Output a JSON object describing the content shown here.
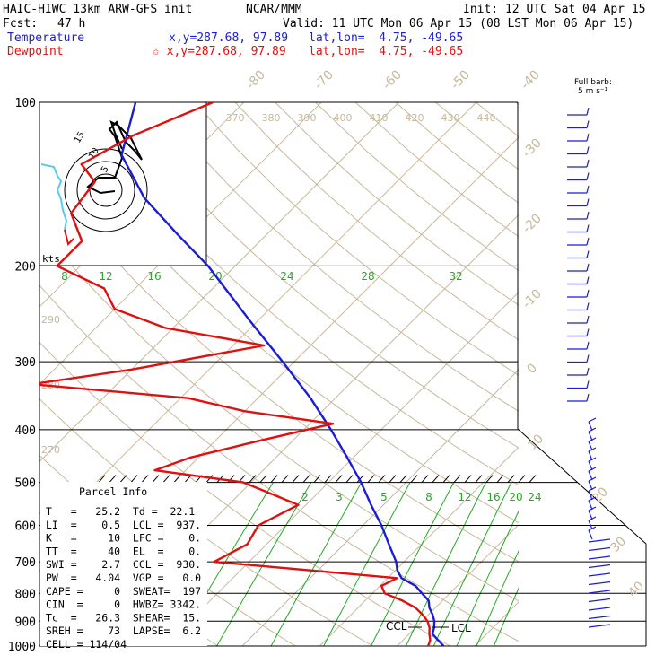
{
  "header": {
    "model": "HAIC-HIWC 13km ARW-GFS init",
    "org": "NCAR/MMM",
    "init": "Init: 12 UTC Sat 04 Apr 15",
    "fcst_label": "Fcst:",
    "fcst_value": "47 h",
    "valid": "Valid: 11 UTC Mon 06 Apr 15 (08 LST Mon 06 Apr 15)",
    "temperature_label": "Temperature",
    "dewpoint_label": "Dewpoint",
    "temp_xy": "x,y=287.68, 97.89",
    "dew_xy": "✩ x,y=287.68, 97.89",
    "temp_latlon": "lat,lon=  4.75, -49.65",
    "dew_latlon": "lat,lon=  4.75, -49.65"
  },
  "colors": {
    "temperature": "#1c1cd6",
    "dewpoint": "#e01010",
    "mixing_ratio": "#22aa22",
    "dry_adiabat": "#c8b89a",
    "hodo_cyan": "#55ccee"
  },
  "barb_key": {
    "line1": "Full barb:",
    "line2": "5 m s⁻¹"
  },
  "hodograph": {
    "units": "kts",
    "ring_labels": [
      "5",
      "10",
      "15"
    ]
  },
  "parcel_info": {
    "title": "Parcel Info",
    "rows": [
      "T   =   25.2  Td =  22.1",
      "LI  =    0.5  LCL =  937.",
      "K   =     10  LFC =    0.",
      "TT  =     40  EL  =    0.",
      "SWI =    2.7  CCL =  930.",
      "PW  =   4.04  VGP =   0.0",
      "CAPE =     0  SWEAT=  197",
      "CIN  =     0  HWBZ= 3342.",
      "Tc  =   26.3  SHEAR=  15.",
      "SREH =    73  LAPSE=  6.2",
      "CELL = 114/04"
    ]
  },
  "ccl_label": "CCL",
  "lcl_label": "LCL",
  "chart_data": {
    "type": "line",
    "title": "",
    "ylabel": "",
    "xlabel": "",
    "y_axis": "pressure (hPa), log scale",
    "pressure_ticks": [
      100,
      200,
      300,
      400,
      500,
      600,
      700,
      800,
      900,
      1000
    ],
    "isotherm_labels": [
      -80,
      -70,
      -60,
      -50,
      -40,
      -30,
      -20,
      -10,
      0,
      10,
      20,
      30,
      40
    ],
    "theta_labels": [
      370,
      380,
      390,
      400,
      410,
      420,
      430,
      440
    ],
    "theta_left_labels": [
      290,
      280,
      270
    ],
    "mixing_ratio_labels_upper": [
      "8",
      "12",
      "16",
      "20",
      "24",
      "28",
      "32"
    ],
    "mixing_ratio_labels_lower": [
      "2",
      "3",
      "5",
      "8",
      "12",
      "16",
      "20",
      "24"
    ],
    "series": [
      {
        "name": "Temperature",
        "color": "#1c1cd6",
        "points": [
          [
            1000,
            26.0
          ],
          [
            975,
            24.5
          ],
          [
            950,
            23.0
          ],
          [
            925,
            22.4
          ],
          [
            900,
            21.6
          ],
          [
            875,
            20.5
          ],
          [
            850,
            19.2
          ],
          [
            825,
            18.2
          ],
          [
            800,
            16.4
          ],
          [
            775,
            14.6
          ],
          [
            750,
            11.8
          ],
          [
            725,
            10.2
          ],
          [
            700,
            9.0
          ],
          [
            650,
            5.8
          ],
          [
            600,
            2.4
          ],
          [
            550,
            -1.6
          ],
          [
            500,
            -5.8
          ],
          [
            450,
            -10.8
          ],
          [
            400,
            -16.5
          ],
          [
            350,
            -23.2
          ],
          [
            300,
            -31.5
          ],
          [
            250,
            -41.5
          ],
          [
            200,
            -53.5
          ],
          [
            175,
            -61.5
          ],
          [
            150,
            -70.5
          ],
          [
            125,
            -79.0
          ],
          [
            100,
            -84.0
          ]
        ]
      },
      {
        "name": "Dewpoint",
        "color": "#e01010",
        "points": [
          [
            1000,
            24.0
          ],
          [
            975,
            23.5
          ],
          [
            950,
            22.6
          ],
          [
            925,
            21.8
          ],
          [
            900,
            20.7
          ],
          [
            875,
            19.2
          ],
          [
            850,
            17.4
          ],
          [
            825,
            14.8
          ],
          [
            800,
            11.6
          ],
          [
            775,
            10.2
          ],
          [
            750,
            11.2
          ],
          [
            700,
            -14.5
          ],
          [
            650,
            -12.5
          ],
          [
            600,
            -13.5
          ],
          [
            550,
            -11.0
          ],
          [
            500,
            -21.0
          ],
          [
            475,
            -34.0
          ],
          [
            450,
            -31.0
          ],
          [
            420,
            -24.5
          ],
          [
            390,
            -17.0
          ],
          [
            370,
            -30.0
          ],
          [
            350,
            -39.0
          ],
          [
            330,
            -61.0
          ],
          [
            310,
            -50.0
          ],
          [
            280,
            -36.0
          ],
          [
            260,
            -51.0
          ],
          [
            240,
            -60.0
          ],
          [
            220,
            -64.0
          ],
          [
            200,
            -73.0
          ],
          [
            180,
            -73.0
          ],
          [
            160,
            -78.0
          ],
          [
            140,
            -79.0
          ],
          [
            130,
            -83.0
          ],
          [
            115,
            -80.0
          ],
          [
            100,
            -74.0
          ]
        ]
      }
    ]
  }
}
